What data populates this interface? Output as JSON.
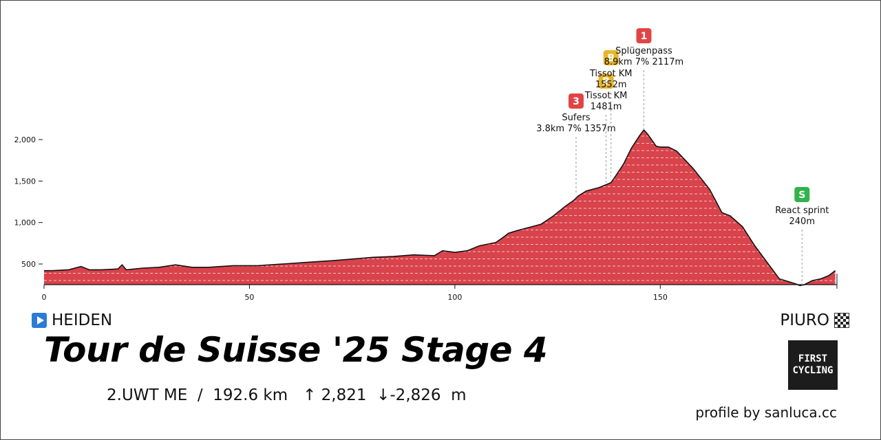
{
  "chart_data": {
    "type": "area",
    "title": "Tour de Suisse '25 Stage 4",
    "xlabel": "",
    "ylabel": "",
    "xlim": [
      0,
      193
    ],
    "ylim": [
      240,
      2117
    ],
    "x_ticks": [
      0,
      50,
      100,
      150
    ],
    "y_ticks": [
      500,
      1000,
      1500,
      2000
    ],
    "y_tick_labels": [
      "500",
      "1,000",
      "1,500",
      "2,000"
    ],
    "grid": false,
    "fill_color": "#d9434b",
    "line_color": "#111111",
    "profile": {
      "x": [
        0,
        2,
        6,
        9,
        11,
        14,
        18,
        19,
        20,
        24,
        28,
        32,
        36,
        40,
        46,
        52,
        58,
        64,
        70,
        75,
        80,
        85,
        90,
        95,
        97,
        100,
        103,
        106,
        110,
        112,
        113,
        115,
        118,
        121,
        124,
        127,
        129,
        130,
        132,
        135,
        137,
        138,
        139,
        141,
        143,
        145,
        146,
        147,
        149,
        150,
        152,
        154,
        158,
        162,
        165,
        167,
        170,
        173,
        176,
        179,
        181,
        183,
        184,
        185,
        187,
        189,
        191,
        192.6
      ],
      "y": [
        420,
        420,
        430,
        470,
        430,
        430,
        440,
        490,
        430,
        450,
        460,
        490,
        460,
        460,
        480,
        480,
        500,
        520,
        540,
        560,
        580,
        590,
        610,
        600,
        660,
        640,
        660,
        720,
        760,
        830,
        870,
        900,
        940,
        980,
        1080,
        1200,
        1270,
        1320,
        1380,
        1420,
        1460,
        1481,
        1552,
        1700,
        1900,
        2050,
        2117,
        2060,
        1920,
        1910,
        1910,
        1860,
        1650,
        1400,
        1120,
        1080,
        950,
        720,
        520,
        320,
        290,
        260,
        240,
        250,
        300,
        320,
        360,
        420
      ]
    },
    "markers": [
      {
        "badge": "3",
        "color": "#e04545",
        "x": 129.5,
        "y": 1357,
        "name": "Sufers",
        "info": "3.8km 7% 1357m"
      },
      {
        "badge": "B",
        "color": "#e8b62c",
        "x": 136.8,
        "y": 1481,
        "name": "Tissot KM",
        "info": "1481m"
      },
      {
        "badge": "B",
        "color": "#e8b62c",
        "x": 138.0,
        "y": 1552,
        "name": "Tissot KM",
        "info": "1552m"
      },
      {
        "badge": "1",
        "color": "#e04545",
        "x": 146.0,
        "y": 2117,
        "name": "Splügenpass",
        "info": "8.9km 7% 2117m"
      },
      {
        "badge": "S",
        "color": "#2fb34a",
        "x": 184.5,
        "y": 240,
        "name": "React sprint",
        "info": "240m"
      }
    ]
  },
  "start": "HEIDEN",
  "finish": "PIURO",
  "title": "Tour de Suisse '25 Stage 4",
  "subtitle": "2.UWT ME  /  192.6 km   ↑ 2,821  ↓-2,826  m",
  "logo": {
    "line1": "FIRST",
    "line2": "CYCLING"
  },
  "credit": "profile by sanluca.cc",
  "icons": {
    "start": "play-icon",
    "finish": "checkered-flag-icon"
  }
}
